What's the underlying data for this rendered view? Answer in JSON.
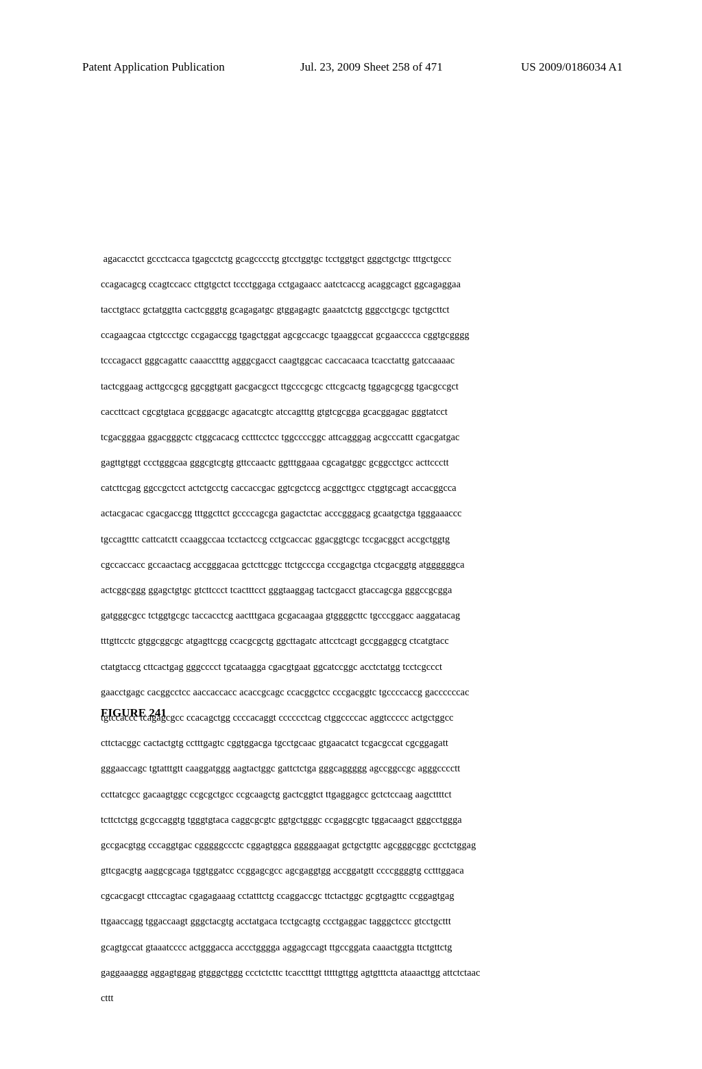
{
  "header": {
    "left": "Patent Application Publication",
    "center": "Jul. 23, 2009  Sheet 258 of 471",
    "right": "US 2009/0186034 A1"
  },
  "sequence": {
    "lines": [
      " agacacctct gccctcacca tgagcctctg gcagcccctg gtcctggtgc tcctggtgct gggctgctgc tttgctgccc",
      "ccagacagcg ccagtccacc cttgtgctct tccctggaga cctgagaacc aatctcaccg acaggcagct ggcagaggaa",
      "tacctgtacc gctatggtta cactcgggtg gcagagatgc gtggagagtc gaaatctctg gggcctgcgc tgctgcttct",
      "ccagaagcaa ctgtccctgc ccgagaccgg tgagctggat agcgccacgc tgaaggccat gcgaacccca cggtgcgggg",
      "tcccagacct gggcagattc caaacctttg agggcgacct caagtggcac caccacaaca tcacctattg gatccaaaac",
      "tactcggaag acttgccgcg ggcggtgatt gacgacgcct ttgcccgcgc cttcgcactg tggagcgcgg tgacgccgct",
      "caccttcact cgcgtgtaca gcgggacgc agacatcgtc atccagtttg gtgtcgcgga gcacggagac gggtatcct",
      "tcgacgggaa ggacgggctc ctggcacacg cctttcctcc tggccccggc attcagggag acgcccattt cgacgatgac",
      "gagttgtggt ccctgggcaa gggcgtcgtg gttccaactc ggtttggaaa cgcagatggc gcggcctgcc acttccctt",
      "catcttcgag ggccgctcct actctgcctg caccaccgac ggtcgctccg acggcttgcc ctggtgcagt accacggcca",
      "actacgacac cgacgaccgg tttggcttct gccccagcga gagactctac acccgggacg gcaatgctga tgggaaaccc",
      "tgccagtttc cattcatctt ccaaggccaa tcctactccg cctgcaccac ggacggtcgc tccgacggct accgctggtg",
      "cgccaccacc gccaactacg accgggacaa gctcttcggc ttctgcccga cccgagctga ctcgacggtg atggggggca",
      "actcggcggg ggagctgtgc gtcttccct tcactttcct gggtaaggag tactcgacct gtaccagcga gggccgcgga",
      "gatgggcgcc tctggtgcgc taccacctcg aactttgaca gcgacaagaa gtggggcttc tgcccggacc aaggatacag",
      "tttgttcctc gtggcggcgc atgagttcgg ccacgcgctg ggcttagatc attcctcagt gccggaggcg ctcatgtacc",
      "ctatgtaccg cttcactgag gggcccct tgcataagga cgacgtgaat ggcatccggc acctctatgg tcctcgccct",
      "gaacctgagc cacggcctcc aaccaccacc acaccgcagc ccacggctcc cccgacggtc tgccccaccg gaccccccac",
      "tgtccaccc tcagagcgcc ccacagctgg ccccacaggt cccccctcag ctggccccac aggtccccc actgctggcc",
      "cttctacggc cactactgtg cctttgagtc cggtggacga tgcctgcaac gtgaacatct tcgacgccat cgcggagatt",
      "gggaaccagc tgtatttgtt caaggatggg aagtactggc gattctctga gggcaggggg agccggccgc agggcccctt",
      "ccttatcgcc gacaagtggc ccgcgctgcc ccgcaagctg gactcggtct ttgaggagcc gctctccaag aagcttttct",
      "tcttctctgg gcgccaggtg tgggtgtaca caggcgcgtc ggtgctgggc ccgaggcgtc tggacaagct gggcctggga",
      "gccgacgtgg cccaggtgac cgggggccctc cggagtggca gggggaagat gctgctgttc agcgggcggc gcctctggag",
      "gttcgacgtg aaggcgcaga tggtggatcc ccggagcgcc agcgaggtgg accggatgtt ccccggggtg cctttggaca",
      "cgcacgacgt cttccagtac cgagagaaag cctatttctg ccaggaccgc ttctactggc gcgtgagttc ccggagtgag",
      "ttgaaccagg tggaccaagt gggctacgtg acctatgaca tcctgcagtg ccctgaggac tagggctccc gtcctgcttt",
      "gcagtgccat gtaaatcccc actgggacca accctgggga aggagccagt ttgccggata caaactggta ttctgttctg",
      "gaggaaaggg aggagtggag gtgggctggg ccctctcttc tcacctttgt tttttgttgg agtgtttcta ataaacttgg attctctaac",
      "cttt"
    ]
  },
  "figure_label": "FIGURE 241"
}
